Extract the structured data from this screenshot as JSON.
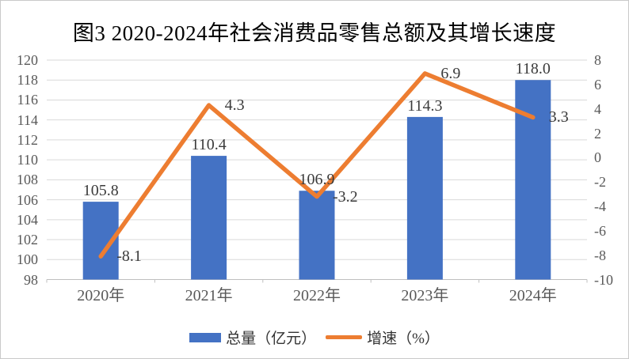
{
  "chart_data": {
    "type": "bar+line",
    "title": "图3  2020-2024年社会消费品零售总额及其增长速度",
    "categories": [
      "2020年",
      "2021年",
      "2022年",
      "2023年",
      "2024年"
    ],
    "series": [
      {
        "name": "总量（亿元）",
        "type": "bar",
        "axis": "left",
        "color": "#4472C4",
        "values": [
          105.8,
          110.4,
          106.9,
          114.3,
          118.0
        ],
        "labels": [
          "105.8",
          "110.4",
          "106.9",
          "114.3",
          "118.0"
        ]
      },
      {
        "name": "增速（%）",
        "type": "line",
        "axis": "right",
        "color": "#ED7D31",
        "values": [
          -8.1,
          4.3,
          -3.2,
          6.9,
          3.3
        ],
        "labels": [
          "-8.1",
          "4.3",
          "-3.2",
          "6.9",
          "3.3"
        ]
      }
    ],
    "left_axis": {
      "min": 98,
      "max": 120,
      "step": 2,
      "ticks": [
        "120",
        "118",
        "116",
        "114",
        "112",
        "110",
        "108",
        "106",
        "104",
        "102",
        "100",
        "98"
      ]
    },
    "right_axis": {
      "min": -10,
      "max": 8,
      "step": 2,
      "ticks": [
        "8",
        "6",
        "4",
        "2",
        "0",
        "-2",
        "-4",
        "-6",
        "-8",
        "-10"
      ]
    },
    "legend": [
      "总量（亿元）",
      "增速（%）"
    ],
    "legend_position": "bottom",
    "grid": true,
    "colors": {
      "bar": "#4472C4",
      "line": "#ED7D31",
      "grid": "#D9D9D9",
      "axis_line": "#BFBFBF",
      "tick_text": "#595959",
      "data_label": "#3B3B3B",
      "title_text": "#000000",
      "frame_border": "#C9C9C9"
    }
  }
}
